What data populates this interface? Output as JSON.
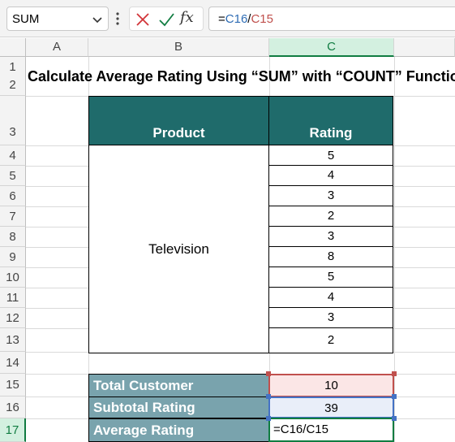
{
  "formula_bar": {
    "name_box": "SUM",
    "formula_parts": [
      {
        "text": "=",
        "color": "#000000"
      },
      {
        "text": "C16",
        "color": "#2f6db5"
      },
      {
        "text": "/",
        "color": "#000000"
      },
      {
        "text": "C15",
        "color": "#c0504d"
      }
    ],
    "fx_label": "fx",
    "icons": [
      "chevron-down-icon",
      "more-vertical-icon",
      "cancel-x-icon",
      "enter-check-icon",
      "insert-function-icon"
    ]
  },
  "columns": [
    "A",
    "B",
    "C"
  ],
  "rows": [
    "1",
    "2",
    "3",
    "4",
    "5",
    "6",
    "7",
    "8",
    "9",
    "10",
    "11",
    "12",
    "13",
    "14",
    "15",
    "16",
    "17"
  ],
  "selected_column": "C",
  "selected_row": "17",
  "sheet": {
    "title": "Calculate Average Rating Using “SUM” with “COUNT” Function",
    "table": {
      "header_product": "Product",
      "header_rating": "Rating",
      "product": "Television",
      "ratings": [
        "5",
        "4",
        "3",
        "2",
        "3",
        "8",
        "5",
        "4",
        "3",
        "2"
      ]
    },
    "summary": {
      "total_customer_label": "Total Customer",
      "total_customer_value": "10",
      "subtotal_rating_label": "Subtotal Rating",
      "subtotal_rating_value": "39",
      "average_rating_label": "Average Rating",
      "average_rating_value": "=C16/C15"
    }
  },
  "colors": {
    "header_fill": "#1f6b6b",
    "summary_label_fill": "#79a3ad",
    "ref_blue": "#4472c4",
    "ref_red": "#c0504d",
    "active_green": "#107c41"
  }
}
